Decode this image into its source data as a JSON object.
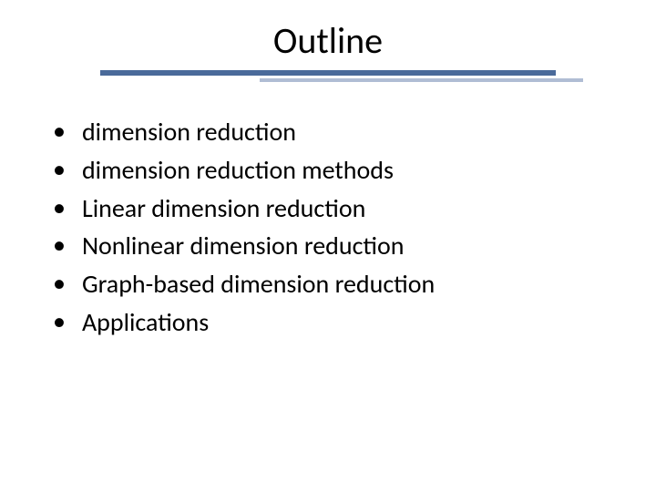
{
  "slide": {
    "title": "Outline",
    "title_fontsize": 40,
    "title_color": "#000000",
    "background_color": "#ffffff",
    "divider": {
      "thick_color": "#4a6a9a",
      "thin_color": "#b0bdd4"
    },
    "bullets": [
      {
        "text": "dimension reduction"
      },
      {
        "text": "dimension reduction methods"
      },
      {
        "text": "Linear dimension reduction"
      },
      {
        "text": "Nonlinear dimension reduction"
      },
      {
        "text": "Graph-based dimension reduction"
      },
      {
        "text": "Applications"
      }
    ],
    "bullet_fontsize": 28,
    "bullet_color": "#000000"
  }
}
